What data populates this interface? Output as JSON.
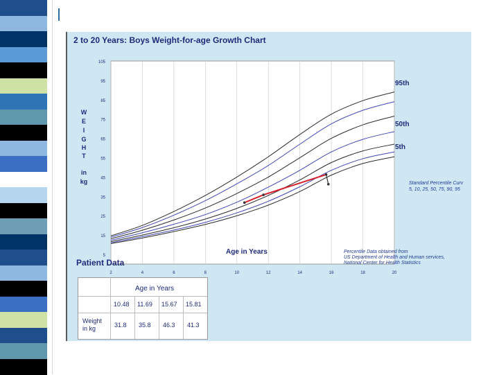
{
  "decor": {
    "stripe_colors": [
      "#1f4e8c",
      "#8fb8e0",
      "#003366",
      "#5b9bd5",
      "#000000",
      "#cfe2a6",
      "#2e75b6",
      "#5f97ac",
      "#000000",
      "#8fb8e0",
      "#3a6fc4",
      "#ffffff",
      "#b5d6ee",
      "#000000",
      "#6d9eb5",
      "#003366",
      "#1f4e8c",
      "#8fb8e0",
      "#000000",
      "#3a6fc4",
      "#cfe2a6",
      "#1f4e8c",
      "#5f97ac",
      "#000000"
    ]
  },
  "chart": {
    "title": "2 to 20 Years: Boys Weight-for-age Growth Chart",
    "y_axis_letters": [
      "W",
      "E",
      "I",
      "G",
      "H",
      "T"
    ],
    "y_axis_unit": [
      "in",
      "kg"
    ],
    "percentile_labels": {
      "p95": "95th",
      "p50": "50th",
      "p5": "5th"
    },
    "standard_curves_text": [
      "Standard Percentile Curv",
      "5, 10, 25, 50, 75, 90, 95"
    ],
    "x_axis_title": "Age in Years",
    "source_text": [
      "Percentile Data obtained from",
      "US Department of Health and Human services,",
      "National Center for Health Statistics"
    ],
    "colors": {
      "plot_bg": "#ffffff",
      "black_curve": "#2a2a2a",
      "blue_curve": "#4046b4",
      "patient_line": "#d8202c",
      "grid": "#c8c8c8",
      "text": "#1f2a7a"
    }
  },
  "chart_data": {
    "type": "line",
    "title": "2 to 20 Years: Boys Weight-for-age Growth Chart",
    "xlabel": "Age in Years",
    "ylabel": "Weight in kg",
    "xlim": [
      2,
      20
    ],
    "ylim": [
      0,
      105
    ],
    "x_ticks": [
      2,
      4,
      6,
      8,
      10,
      12,
      14,
      16,
      18,
      20
    ],
    "y_ticks": [
      5,
      15,
      25,
      35,
      45,
      55,
      65,
      75,
      85,
      95,
      105
    ],
    "x": [
      2,
      4,
      6,
      8,
      10,
      12,
      14,
      16,
      18,
      20
    ],
    "series": [
      {
        "name": "5th",
        "color": "black",
        "values": [
          10.6,
          13.5,
          16.8,
          20.5,
          25.0,
          30.5,
          37.5,
          46.0,
          52.0,
          55.5
        ]
      },
      {
        "name": "10th",
        "color": "blue",
        "values": [
          11.0,
          14.2,
          17.6,
          21.6,
          26.5,
          32.5,
          40.0,
          48.5,
          54.5,
          58.0
        ]
      },
      {
        "name": "25th",
        "color": "black",
        "values": [
          11.6,
          15.0,
          18.8,
          23.3,
          28.8,
          35.5,
          43.5,
          52.5,
          58.5,
          62.0
        ]
      },
      {
        "name": "50th",
        "color": "blue",
        "values": [
          12.3,
          16.2,
          20.6,
          25.6,
          32.0,
          39.8,
          48.5,
          58.0,
          64.5,
          68.5
        ]
      },
      {
        "name": "75th",
        "color": "black",
        "values": [
          13.1,
          17.5,
          22.8,
          29.0,
          36.5,
          45.0,
          55.0,
          65.0,
          72.0,
          76.5
        ]
      },
      {
        "name": "90th",
        "color": "blue",
        "values": [
          13.9,
          18.9,
          25.3,
          32.8,
          41.5,
          51.0,
          62.0,
          72.5,
          79.5,
          84.0
        ]
      },
      {
        "name": "95th",
        "color": "black",
        "values": [
          14.6,
          20.0,
          27.2,
          35.5,
          45.0,
          55.5,
          67.0,
          77.5,
          84.5,
          89.0
        ]
      }
    ],
    "patient": {
      "name": "Patient",
      "ages": [
        10.48,
        11.69,
        15.67,
        15.81
      ],
      "weights": [
        31.8,
        35.8,
        46.3,
        41.3
      ]
    }
  },
  "patient_table": {
    "title": "Patient Data",
    "header": "Age in Years",
    "ages": [
      "10.48",
      "11.69",
      "15.67",
      "15.81"
    ],
    "row_label": [
      "Weight",
      "in kg"
    ],
    "weights": [
      "31.8",
      "35.8",
      "46.3",
      "41.3"
    ]
  }
}
